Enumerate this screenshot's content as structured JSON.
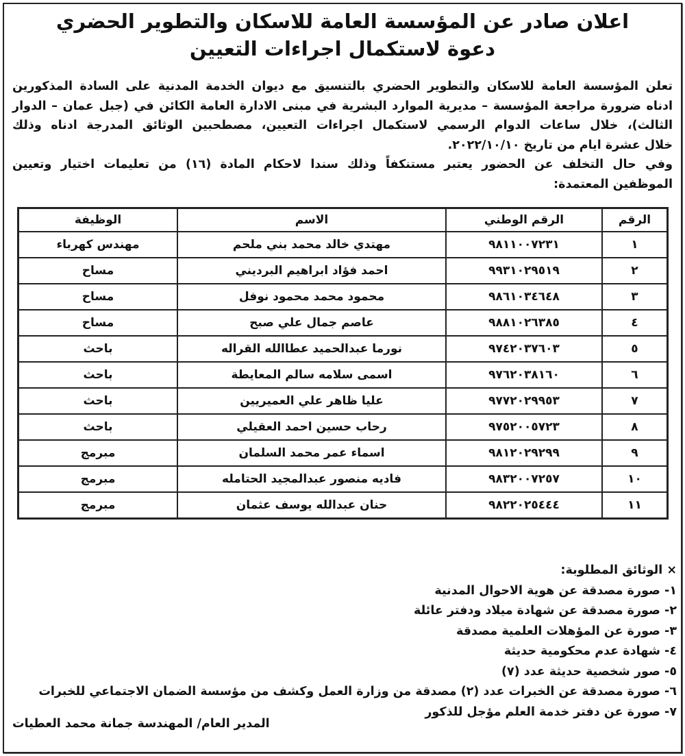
{
  "title": {
    "line1": "اعلان صادر عن المؤسسة العامة للاسكان والتطوير الحضري",
    "line2": "دعوة لاستكمال اجراءات التعيين"
  },
  "intro_lines": [
    "تعلن المؤسسة العامة للاسكان والتطوير الحضري بالتنسيق مع ديوان الخدمة المدنية على السادة المذكورين",
    "ادناه ضرورة مراجعة المؤسسة – مديرية الموارد البشرية في مبنى الادارة العامة الكائن في (جبل عمان – الدوار",
    "الثالث)، خلال ساعات الدوام الرسمي لاستكمال اجراءات التعيين، مصطحبين الوثائق المدرجة ادناه وذلك",
    "خلال عشرة ايام من تاريخ ٢٠٢٢/١٠/١٠.",
    "وفي حال التخلف عن الحضور يعتبر مستنكفاً وذلك سندا لاحكام المادة (١٦) من تعليمات اختيار وتعيين",
    "الموظفين المعتمدة:"
  ],
  "table": {
    "headers": [
      "الرقم",
      "الرقم الوطني",
      "الاسم",
      "الوظيفة"
    ],
    "rows": [
      [
        "١",
        "٩٨١١٠٠٧٢٣١",
        "مهتدي خالد محمد بني ملحم",
        "مهندس كهرباء"
      ],
      [
        "٢",
        "٩٩٣١٠٢٩٥١٩",
        "احمد فؤاد ابراهيم البرديني",
        "مساح"
      ],
      [
        "٣",
        "٩٨٦١٠٣٤٦٤٨",
        "محمود محمد محمود نوفل",
        "مساح"
      ],
      [
        "٤",
        "٩٨٨١٠٢٦٣٨٥",
        "عاصم جمال علي صبح",
        "مساح"
      ],
      [
        "٥",
        "٩٧٤٢٠٣٧٦٠٣",
        "نورما عبدالحميد عطاالله القراله",
        "باحث"
      ],
      [
        "٦",
        "٩٧٦٢٠٣٨١٦٠",
        "اسمى سلامه سالم المعايطة",
        "باحث"
      ],
      [
        "٧",
        "٩٧٧٢٠٢٩٩٥٣",
        "عليا ظاهر علي العميريين",
        "باحث"
      ],
      [
        "٨",
        "٩٧٥٢٠٠٥٧٢٣",
        "رحاب حسين احمد العقيلي",
        "باحث"
      ],
      [
        "٩",
        "٩٨١٢٠٢٩٢٩٩",
        "اسماء عمر محمد السلمان",
        "مبرمج"
      ],
      [
        "١٠",
        "٩٨٣٢٠٠٧٢٥٧",
        "فاديه منصور عبدالمجيد الحتامله",
        "مبرمج"
      ],
      [
        "١١",
        "٩٨٢٢٠٢٥٤٤٤",
        "حنان عبدالله يوسف عثمان",
        "مبرمج"
      ]
    ]
  },
  "documents": {
    "heading": "× الوثائق المطلوبة:",
    "items": [
      "١- صورة مصدقة عن هوية الاحوال المدنية",
      "٢- صورة مصدقة عن شهادة ميلاد ودفتر عائلة",
      "٣- صورة عن المؤهلات العلمية مصدقة",
      "٤- شهادة عدم محكومية حديثة",
      "٥- صور شخصية حديثة عدد (٧)",
      "٦- صورة مصدقة عن الخبرات عدد (٢) مصدقة من وزارة العمل وكشف من مؤسسة الضمان الاجتماعي للخبرات",
      "٧- صورة عن دفتر خدمة العلم مؤجل للذكور"
    ]
  },
  "signature": "المدير العام/ المهندسة جمانة محمد العطيات"
}
